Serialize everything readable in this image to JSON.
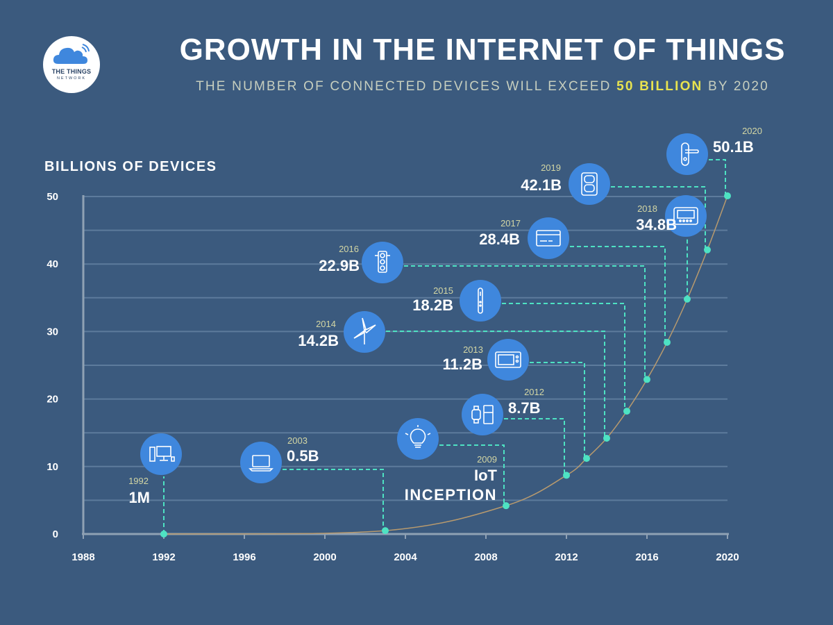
{
  "header": {
    "title": "GROWTH IN THE INTERNET OF THINGS",
    "subtitle_before": "THE NUMBER OF CONNECTED DEVICES WILL EXCEED ",
    "subtitle_highlight": "50 BILLION",
    "subtitle_after": " BY 2020"
  },
  "logo": {
    "line1": "THE THINGS",
    "line2": "NETWORK"
  },
  "colors": {
    "background": "#3b5a7e",
    "accent": "#4ee2c3",
    "icon_circle": "#3f87dd",
    "highlight": "#e8e34f",
    "curve": "#b89a6e"
  },
  "chart_data": {
    "type": "line",
    "title": "GROWTH IN THE INTERNET OF THINGS",
    "ylabel": "BILLIONS OF DEVICES",
    "xlabel": "",
    "xlim": [
      1988,
      2020
    ],
    "ylim": [
      0,
      50
    ],
    "x_ticks": [
      "1988",
      "1992",
      "1996",
      "2000",
      "2004",
      "2008",
      "2012",
      "2016",
      "2020"
    ],
    "y_ticks": [
      "0",
      "10",
      "20",
      "30",
      "40",
      "50"
    ],
    "grid": true,
    "points": [
      {
        "year": 1992,
        "year_label": "1992",
        "value": 0.001,
        "label": "1M",
        "icon": "desktop-computer-icon"
      },
      {
        "year": 2003,
        "year_label": "2003",
        "value": 0.5,
        "label": "0.5B",
        "icon": "laptop-icon"
      },
      {
        "year": 2009,
        "year_label": "2009",
        "value": 4.2,
        "label": "IoT",
        "label2": "INCEPTION",
        "icon": "lightbulb-icon"
      },
      {
        "year": 2012,
        "year_label": "2012",
        "value": 8.7,
        "label": "8.7B",
        "icon": "watch-fridge-icon"
      },
      {
        "year": 2013,
        "year_label": "2013",
        "value": 11.2,
        "label": "11.2B",
        "icon": "microwave-icon"
      },
      {
        "year": 2014,
        "year_label": "2014",
        "value": 14.2,
        "label": "14.2B",
        "icon": "wind-turbine-icon"
      },
      {
        "year": 2015,
        "year_label": "2015",
        "value": 18.2,
        "label": "18.2B",
        "icon": "toothbrush-icon"
      },
      {
        "year": 2016,
        "year_label": "2016",
        "value": 22.9,
        "label": "22.9B",
        "icon": "traffic-light-icon"
      },
      {
        "year": 2017,
        "year_label": "2017",
        "value": 28.4,
        "label": "28.4B",
        "icon": "credit-card-icon"
      },
      {
        "year": 2018,
        "year_label": "2018",
        "value": 34.8,
        "label": "34.8B",
        "icon": "thermostat-icon"
      },
      {
        "year": 2019,
        "year_label": "2019",
        "value": 42.1,
        "label": "42.1B",
        "icon": "power-outlet-icon"
      },
      {
        "year": 2020,
        "year_label": "2020",
        "value": 50.1,
        "label": "50.1B",
        "icon": "door-handle-icon"
      }
    ]
  }
}
